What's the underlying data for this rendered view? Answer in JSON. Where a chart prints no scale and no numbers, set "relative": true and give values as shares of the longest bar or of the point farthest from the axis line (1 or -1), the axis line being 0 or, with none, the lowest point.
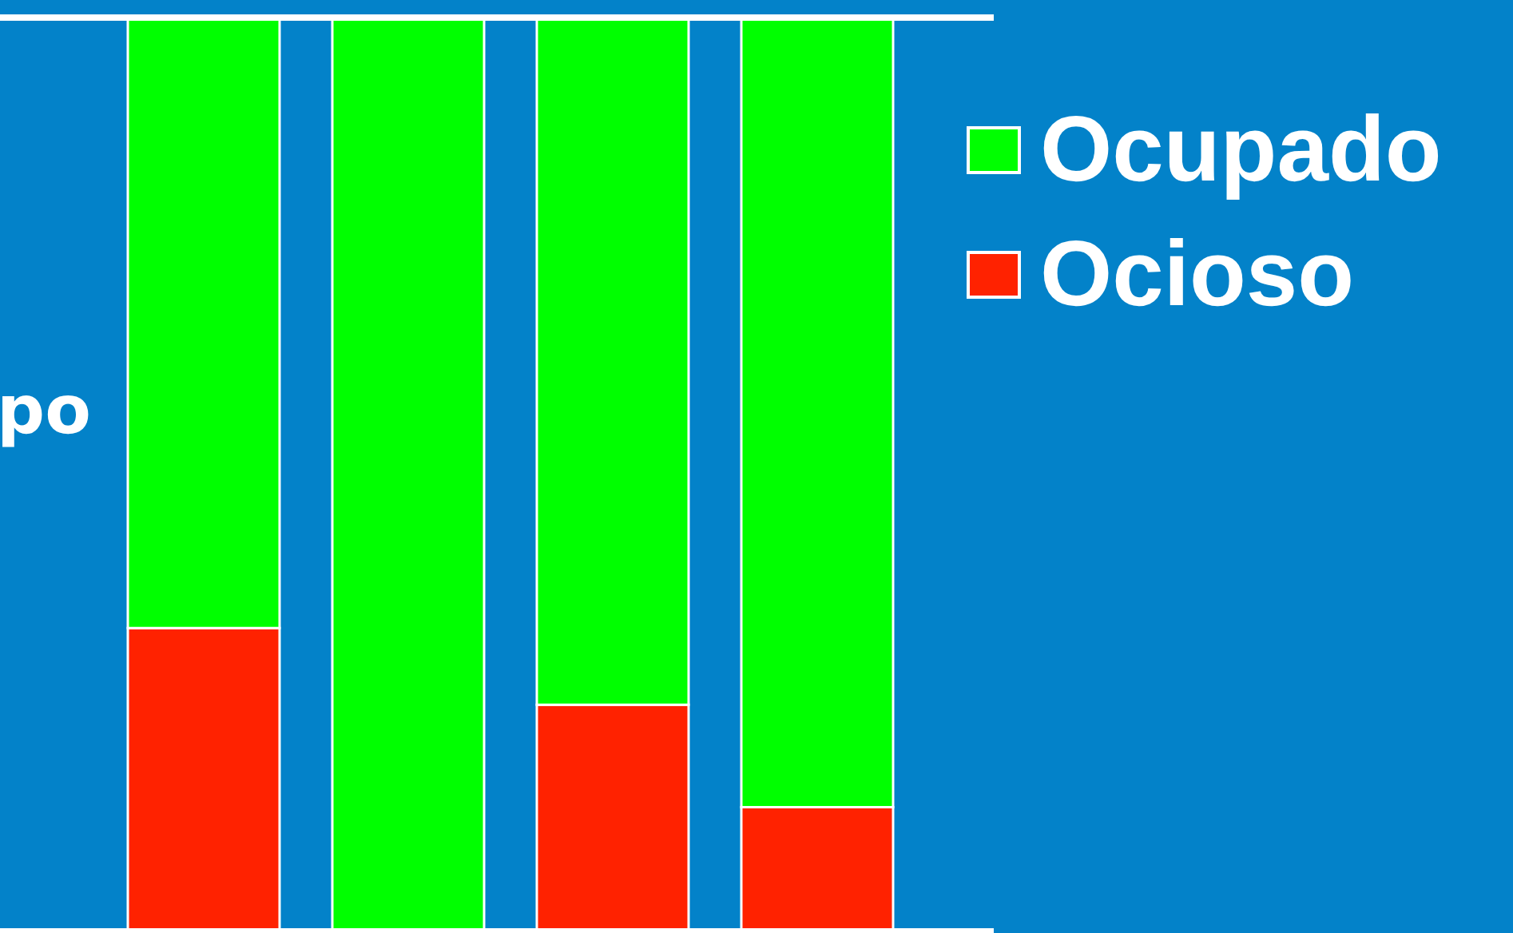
{
  "chart_data": {
    "type": "bar",
    "stacked": true,
    "relative": true,
    "ylabel": "po",
    "categories": [
      null,
      null,
      null,
      null
    ],
    "series": [
      {
        "name": "Ocioso",
        "color": "#ff2200",
        "values": [
          0.332,
          0,
          0.248,
          0.136
        ]
      },
      {
        "name": "Ocupado",
        "color": "#00ff00",
        "values": [
          0.668,
          1,
          0.752,
          0.864
        ]
      }
    ],
    "legend": "top right",
    "grid": false
  }
}
